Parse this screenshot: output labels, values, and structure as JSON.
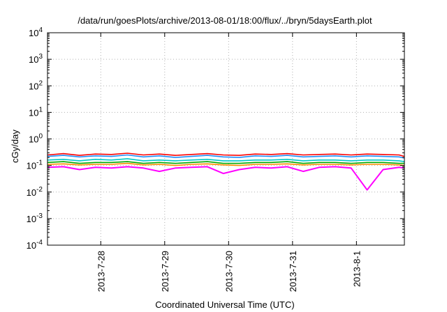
{
  "chart_data": {
    "type": "line",
    "title": "/data/run/goesPlots/archive/2013-08-01/18:00/flux/../bryn/5daysEarth.plot",
    "xlabel": "Coordinated Universal Time (UTC)",
    "ylabel": "cGy/day",
    "yscale": "log",
    "ylim": [
      0.0001,
      10000
    ],
    "yticks": [
      {
        "value": 0.0001,
        "base": "10",
        "exp": "-4"
      },
      {
        "value": 0.001,
        "base": "10",
        "exp": "-3"
      },
      {
        "value": 0.01,
        "base": "10",
        "exp": "-2"
      },
      {
        "value": 0.1,
        "base": "10",
        "exp": "-1"
      },
      {
        "value": 1,
        "base": "10",
        "exp": "0"
      },
      {
        "value": 10,
        "base": "10",
        "exp": "1"
      },
      {
        "value": 100,
        "base": "10",
        "exp": "2"
      },
      {
        "value": 1000,
        "base": "10",
        "exp": "3"
      },
      {
        "value": 10000,
        "base": "10",
        "exp": "4"
      }
    ],
    "xlim": [
      "2013-07-27T04:00",
      "2013-08-01T18:00"
    ],
    "xticks": [
      {
        "value": "2013-07-28T00:00",
        "label": "2013-7-28"
      },
      {
        "value": "2013-07-29T00:00",
        "label": "2013-7-29"
      },
      {
        "value": "2013-07-30T00:00",
        "label": "2013-7-30"
      },
      {
        "value": "2013-07-31T00:00",
        "label": "2013-7-31"
      },
      {
        "value": "2013-08-01T00:00",
        "label": "2013-8-1"
      }
    ],
    "grid": true,
    "x": [
      "2013-07-27T04:00",
      "2013-07-27T10:00",
      "2013-07-27T16:00",
      "2013-07-27T22:00",
      "2013-07-28T04:00",
      "2013-07-28T10:00",
      "2013-07-28T16:00",
      "2013-07-28T22:00",
      "2013-07-29T04:00",
      "2013-07-29T10:00",
      "2013-07-29T16:00",
      "2013-07-29T22:00",
      "2013-07-30T04:00",
      "2013-07-30T10:00",
      "2013-07-30T16:00",
      "2013-07-30T22:00",
      "2013-07-31T04:00",
      "2013-07-31T10:00",
      "2013-07-31T16:00",
      "2013-07-31T22:00",
      "2013-08-01T04:00",
      "2013-08-01T10:00",
      "2013-08-01T16:00",
      "2013-08-01T18:00"
    ],
    "series": [
      {
        "color": "#ff0000",
        "values": [
          0.25,
          0.28,
          0.24,
          0.27,
          0.26,
          0.29,
          0.25,
          0.27,
          0.24,
          0.26,
          0.28,
          0.25,
          0.24,
          0.27,
          0.26,
          0.28,
          0.25,
          0.26,
          0.27,
          0.25,
          0.27,
          0.26,
          0.25,
          0.22
        ]
      },
      {
        "color": "#1e90ff",
        "values": [
          0.22,
          0.24,
          0.21,
          0.23,
          0.22,
          0.25,
          0.21,
          0.23,
          0.2,
          0.22,
          0.24,
          0.21,
          0.2,
          0.23,
          0.22,
          0.24,
          0.21,
          0.22,
          0.23,
          0.21,
          0.23,
          0.22,
          0.21,
          0.19
        ]
      },
      {
        "color": "#00c8c8",
        "values": [
          0.16,
          0.17,
          0.15,
          0.17,
          0.16,
          0.18,
          0.15,
          0.16,
          0.15,
          0.16,
          0.17,
          0.15,
          0.15,
          0.16,
          0.16,
          0.17,
          0.15,
          0.16,
          0.16,
          0.15,
          0.16,
          0.16,
          0.15,
          0.14
        ]
      },
      {
        "color": "#00aa00",
        "values": [
          0.13,
          0.14,
          0.12,
          0.13,
          0.13,
          0.14,
          0.12,
          0.13,
          0.12,
          0.13,
          0.14,
          0.12,
          0.12,
          0.13,
          0.13,
          0.14,
          0.12,
          0.13,
          0.13,
          0.12,
          0.13,
          0.13,
          0.12,
          0.12
        ]
      },
      {
        "color": "#ff8c00",
        "values": [
          0.11,
          0.115,
          0.105,
          0.11,
          0.11,
          0.12,
          0.105,
          0.11,
          0.1,
          0.11,
          0.115,
          0.105,
          0.1,
          0.11,
          0.11,
          0.115,
          0.105,
          0.11,
          0.11,
          0.105,
          0.11,
          0.11,
          0.105,
          0.1
        ]
      },
      {
        "color": "#ff00ff",
        "values": [
          0.085,
          0.09,
          0.07,
          0.085,
          0.08,
          0.09,
          0.08,
          0.06,
          0.08,
          0.085,
          0.09,
          0.05,
          0.07,
          0.085,
          0.08,
          0.09,
          0.06,
          0.085,
          0.09,
          0.08,
          0.012,
          0.07,
          0.085,
          0.08
        ]
      }
    ]
  }
}
